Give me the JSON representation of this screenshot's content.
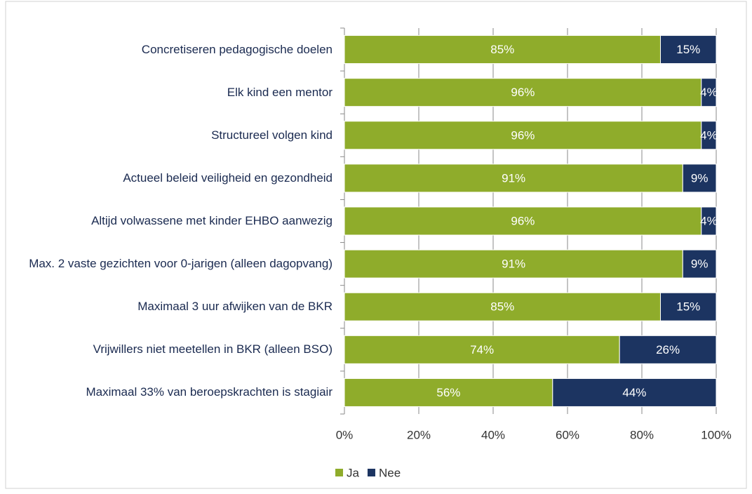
{
  "chart_data": {
    "type": "stacked_bar_horizontal",
    "categories": [
      "Concretiseren pedagogische doelen",
      "Elk kind een mentor",
      "Structureel volgen kind",
      "Actueel beleid veiligheid en gezondheid",
      "Altijd volwassene met kinder EHBO aanwezig",
      "Max. 2 vaste gezichten voor 0-jarigen (alleen dagopvang)",
      "Maximaal 3 uur afwijken van de BKR",
      "Vrijwillers  niet meetellen in BKR (alleen BSO)",
      "Maximaal 33% van beroepskrachten is stagiair"
    ],
    "series": [
      {
        "name": "Ja",
        "color": "#8fac2b",
        "values": [
          85,
          96,
          96,
          91,
          96,
          91,
          85,
          74,
          56
        ],
        "value_labels": [
          "85%",
          "96%",
          "96%",
          "91%",
          "96%",
          "91%",
          "85%",
          "74%",
          "56%"
        ]
      },
      {
        "name": "Nee",
        "color": "#1c3461",
        "values": [
          15,
          4,
          4,
          9,
          4,
          9,
          15,
          26,
          44
        ],
        "value_labels": [
          "15%",
          "4%",
          "4%",
          "9%",
          "4%",
          "9%",
          "15%",
          "26%",
          "44%"
        ]
      }
    ],
    "xlim": [
      0,
      100
    ],
    "xticks": [
      {
        "value": 0,
        "label": "0%"
      },
      {
        "value": 20,
        "label": "20%"
      },
      {
        "value": 40,
        "label": "40%"
      },
      {
        "value": 60,
        "label": "60%"
      },
      {
        "value": 80,
        "label": "80%"
      },
      {
        "value": 100,
        "label": "100%"
      }
    ],
    "grid": true,
    "legend": "bottom"
  }
}
